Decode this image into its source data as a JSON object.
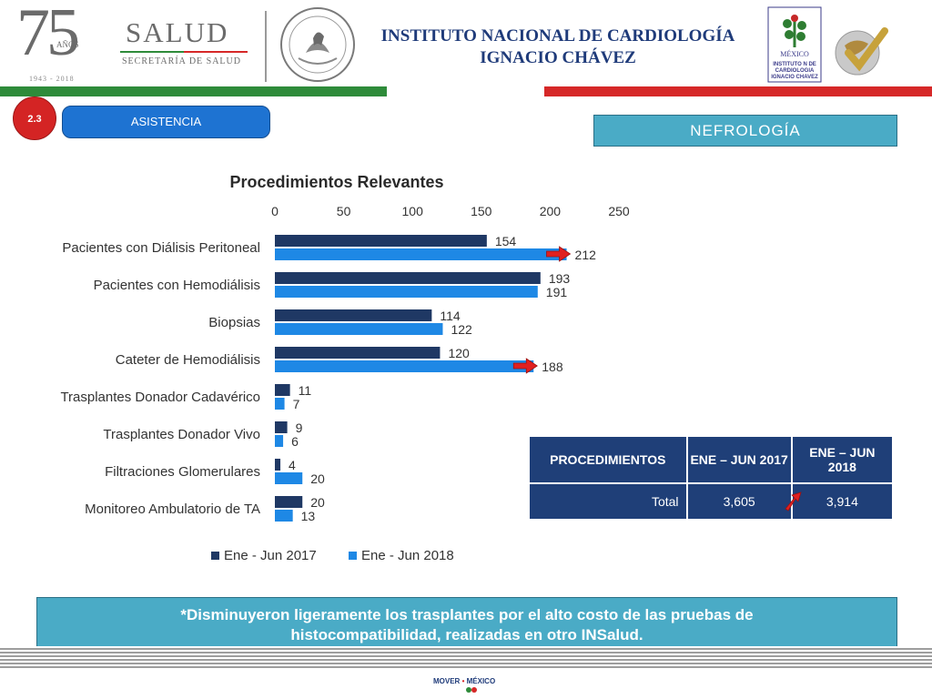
{
  "header": {
    "anniversary_number": "75",
    "anniversary_word": "AÑOS",
    "anniversary_years": "1943 - 2018",
    "salud_word": "SALUD",
    "salud_sub": "SECRETARÍA DE SALUD",
    "institute_line1": "INSTITUTO NACIONAL DE CARDIOLOGÍA",
    "institute_line2": "IGNACIO CHÁVEZ",
    "inst_logo_text": [
      "MÉXICO",
      "INSTITUTO N DE",
      "CARDIOLOGIA",
      "IGNACIO CHAVEZ"
    ]
  },
  "section": {
    "number": "2.3",
    "label": "ASISTENCIA",
    "area": "NEFROLOGÍA"
  },
  "chart_data": {
    "type": "bar",
    "orientation": "horizontal",
    "title": "Procedimientos Relevantes",
    "xlim": [
      0,
      250
    ],
    "xticks": [
      0,
      50,
      100,
      150,
      200,
      250
    ],
    "categories": [
      "Pacientes con Diálisis Peritoneal",
      "Pacientes con Hemodiálisis",
      "Biopsias",
      "Cateter de Hemodiálisis",
      "Trasplantes Donador Cadavérico",
      "Trasplantes Donador Vivo",
      "Filtraciones Glomerulares",
      "Monitoreo Ambulatorio de TA"
    ],
    "series": [
      {
        "name": "Ene - Jun 2017",
        "color": "#1f3864",
        "values": [
          154,
          193,
          114,
          120,
          11,
          9,
          4,
          20
        ]
      },
      {
        "name": "Ene - Jun 2018",
        "color": "#1e88e5",
        "values": [
          212,
          191,
          122,
          188,
          7,
          6,
          20,
          13
        ]
      }
    ],
    "legend_position": "bottom",
    "highlight_arrows_on": [
      0,
      3
    ],
    "arrow_color": "#e02020"
  },
  "table": {
    "headers": [
      "PROCEDIMIENTOS",
      "ENE – JUN 2017",
      "ENE – JUN 2018"
    ],
    "rows": [
      {
        "label": "Total",
        "v2017": "3,605",
        "v2018": "3,914"
      }
    ]
  },
  "note": {
    "line1": "*Disminuyeron ligeramente los trasplantes por el alto costo de las pruebas de",
    "line2": "histocompatibilidad, realizadas en otro INSalud."
  },
  "footer": {
    "brand_left": "MOVER",
    "brand_right": "MÉXICO"
  }
}
